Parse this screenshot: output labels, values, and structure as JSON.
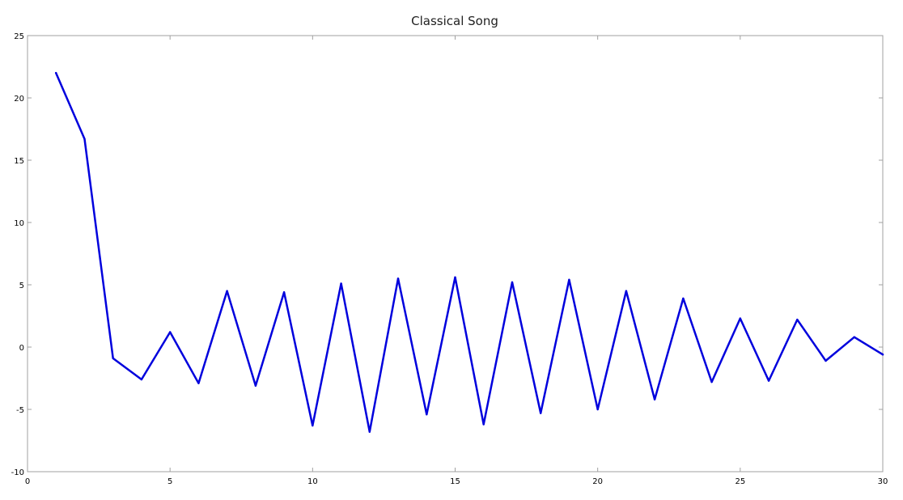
{
  "chart_data": {
    "type": "line",
    "title": "Classical Song",
    "xlabel": "",
    "ylabel": "",
    "xlim": [
      0,
      30
    ],
    "ylim": [
      -10,
      25
    ],
    "xticks": [
      0,
      5,
      10,
      15,
      20,
      25,
      30
    ],
    "yticks": [
      -10,
      -5,
      0,
      5,
      10,
      15,
      20,
      25
    ],
    "grid": false,
    "series": [
      {
        "color": "#0000dd",
        "x": [
          1,
          2,
          3,
          4,
          5,
          6,
          7,
          8,
          9,
          10,
          11,
          12,
          13,
          14,
          15,
          16,
          17,
          18,
          19,
          20,
          21,
          22,
          23,
          24,
          25,
          26,
          27,
          28,
          29,
          30
        ],
        "y": [
          22.0,
          16.7,
          -0.9,
          -2.6,
          1.2,
          -2.9,
          4.5,
          -3.1,
          4.4,
          -6.3,
          5.1,
          -6.8,
          5.5,
          -5.4,
          5.6,
          -6.2,
          5.2,
          -5.3,
          5.4,
          -5.0,
          4.5,
          -4.2,
          3.9,
          -2.8,
          2.3,
          -2.7,
          2.2,
          -1.1,
          0.8,
          -0.6
        ]
      }
    ]
  }
}
